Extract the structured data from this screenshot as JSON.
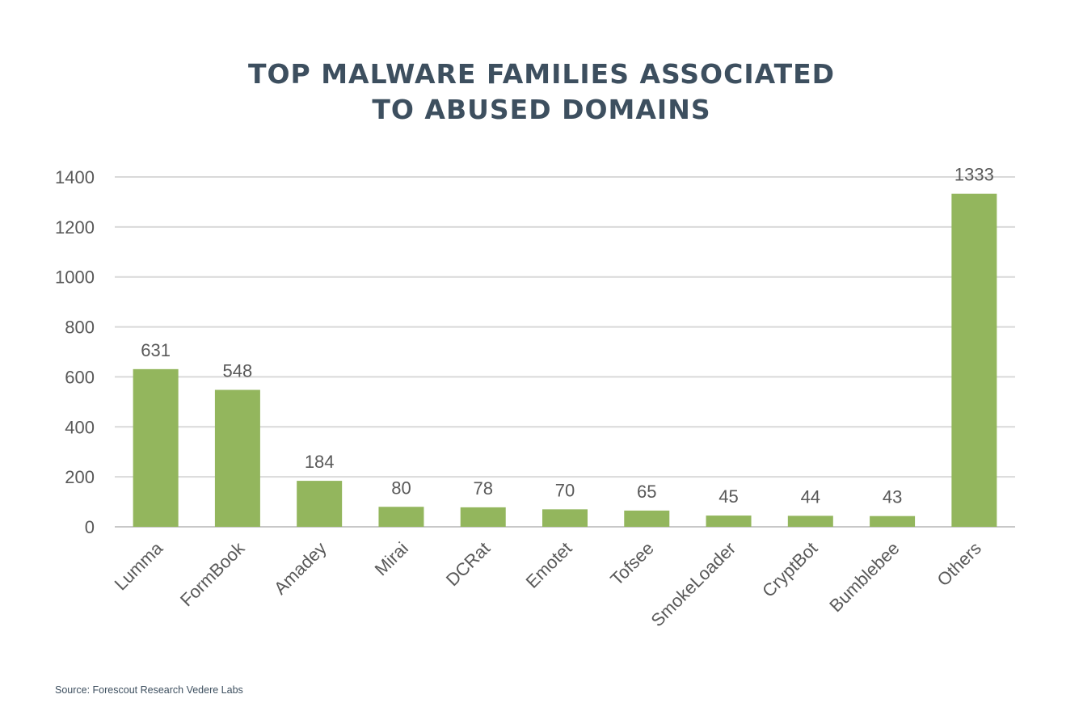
{
  "title_line1": "TOP MALWARE FAMILIES ASSOCIATED",
  "title_line2": "TO ABUSED DOMAINS",
  "source": "Source: Forescout Research Vedere Labs",
  "colors": {
    "bar": "#93b65d",
    "grid": "#d9d9d9",
    "axis": "#c8c8c8",
    "title": "#3d4f5f",
    "text": "#595959"
  },
  "chart_data": {
    "type": "bar",
    "title": "TOP MALWARE FAMILIES ASSOCIATED TO ABUSED DOMAINS",
    "xlabel": "",
    "ylabel": "",
    "categories": [
      "Lumma",
      "FormBook",
      "Amadey",
      "Mirai",
      "DCRat",
      "Emotet",
      "Tofsee",
      "SmokeLoader",
      "CryptBot",
      "Bumblebee",
      "Others"
    ],
    "values": [
      631,
      548,
      184,
      80,
      78,
      70,
      65,
      45,
      44,
      43,
      1333
    ],
    "data_labels": [
      "631",
      "548",
      "184",
      "80",
      "78",
      "70",
      "65",
      "45",
      "44",
      "43",
      "1333"
    ],
    "ylim": [
      0,
      1400
    ],
    "yticks": [
      0,
      200,
      400,
      600,
      800,
      1000,
      1200,
      1400
    ],
    "ytick_labels": [
      "0",
      "200",
      "400",
      "600",
      "800",
      "1000",
      "1200",
      "1400"
    ],
    "grid": true,
    "legend": "none"
  }
}
